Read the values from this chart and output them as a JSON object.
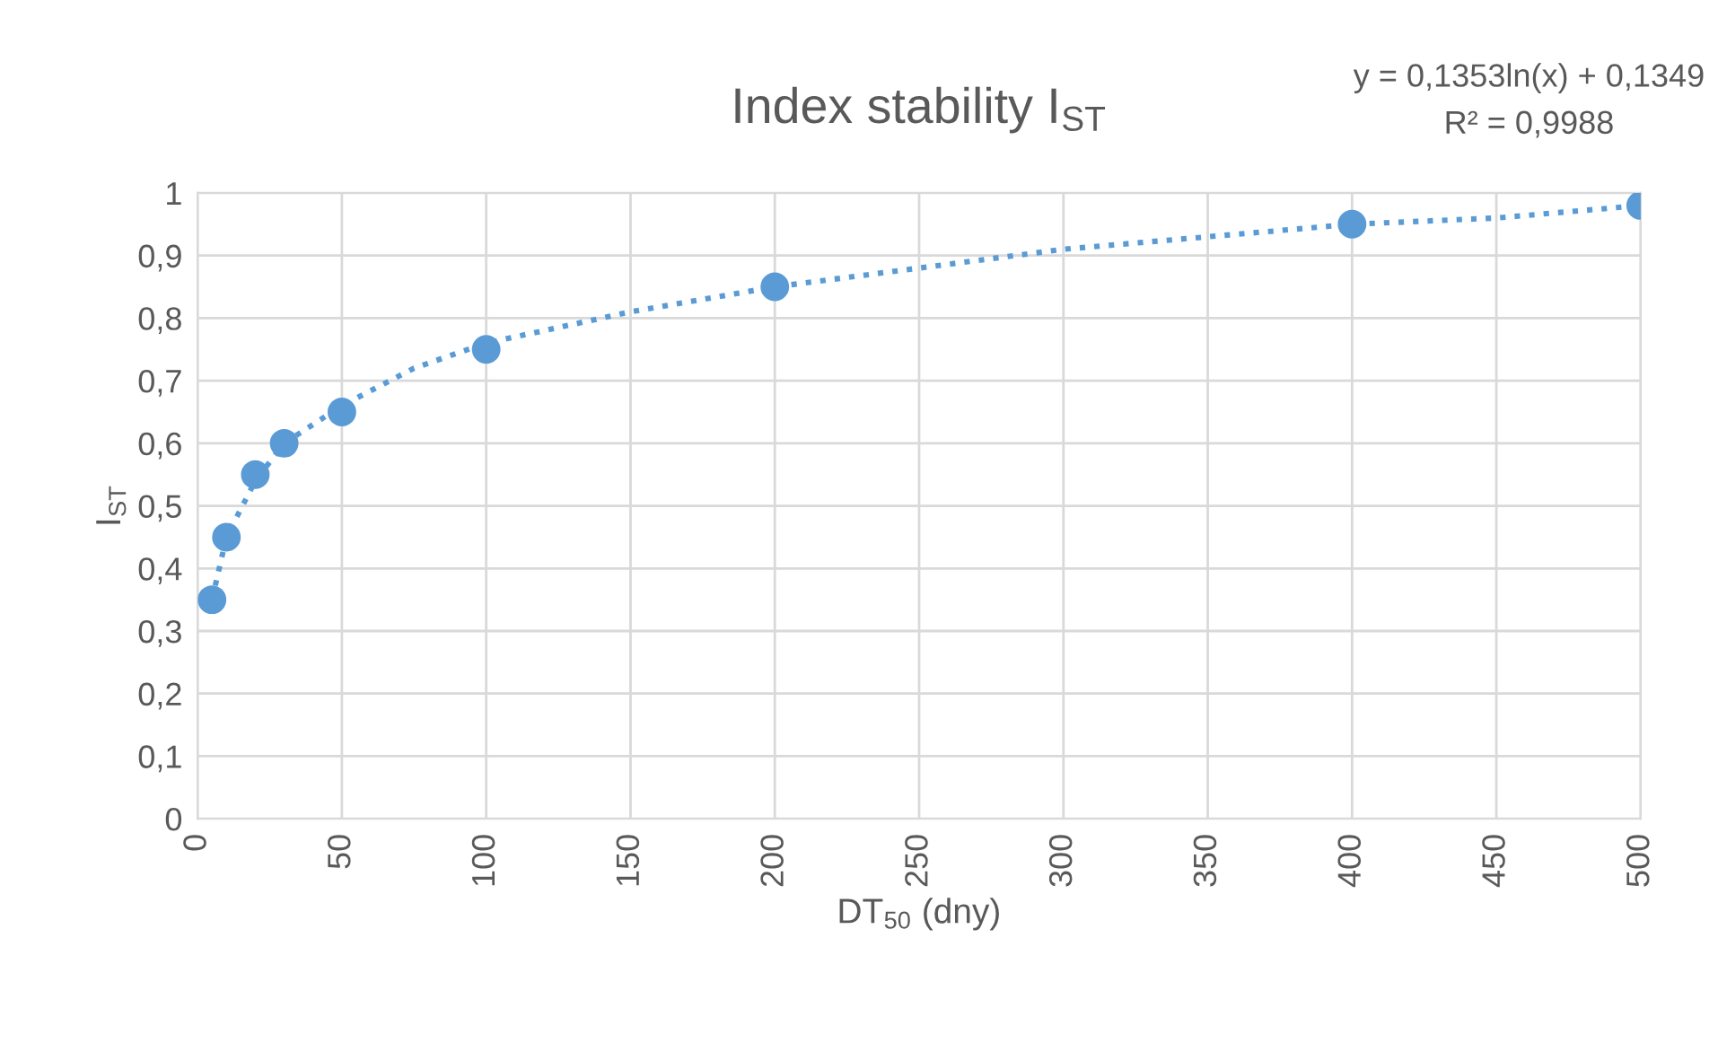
{
  "chart_data": {
    "type": "scatter",
    "title": "Index stability I$_{ST}$",
    "xlabel": "DT$_{50}$ (dny)",
    "ylabel": "I$_{ST}$",
    "annotations": [
      "y = 0,1353ln(x) + 0,1349",
      "R² = 0,9988"
    ],
    "series": [
      {
        "color": "#5b9bd5",
        "marker": "circle",
        "x": [
          5,
          10,
          20,
          30,
          50,
          100,
          200,
          400,
          500
        ],
        "values": [
          0.35,
          0.45,
          0.55,
          0.6,
          0.65,
          0.75,
          0.85,
          0.95,
          0.98
        ]
      },
      {
        "type": "line",
        "color": "#5b9bd5",
        "line_style": "dotted",
        "x": [
          5,
          10,
          20,
          30,
          50,
          75,
          100,
          150,
          200,
          250,
          300,
          350,
          400,
          450,
          500
        ],
        "values": [
          0.35,
          0.45,
          0.54,
          0.6,
          0.66,
          0.72,
          0.76,
          0.81,
          0.85,
          0.88,
          0.91,
          0.93,
          0.95,
          0.96,
          0.98
        ]
      }
    ],
    "xlim": [
      0,
      500
    ],
    "xticks": [
      0,
      50,
      100,
      150,
      200,
      250,
      300,
      350,
      400,
      450,
      500
    ],
    "ylim": [
      0,
      1
    ],
    "yticks": [
      0,
      {
        "value": 0.1,
        "label": "0,1"
      },
      {
        "value": 0.2,
        "label": "0,2"
      },
      {
        "value": 0.3,
        "label": "0,3"
      },
      {
        "value": 0.4,
        "label": "0,4"
      },
      {
        "value": 0.5,
        "label": "0,5"
      },
      {
        "value": 0.6,
        "label": "0,6"
      },
      {
        "value": 0.7,
        "label": "0,7"
      },
      {
        "value": 0.8,
        "label": "0,8"
      },
      {
        "value": 0.9,
        "label": "0,9"
      },
      1
    ],
    "grid": true,
    "legend": false
  }
}
